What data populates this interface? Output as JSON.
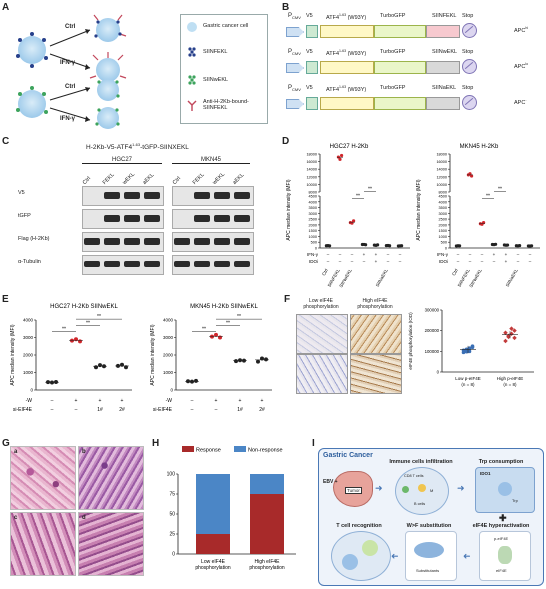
{
  "panels": {
    "A": {
      "label": "A",
      "arrow_top": "Ctrl",
      "arrow_ifn": "IFN-γ",
      "arrow_top2": "Ctrl",
      "arrow_ifn2": "IFN-γ",
      "legend": [
        "Gastric cancer cell",
        "SIINFEKL",
        "SIINwEKL",
        "Anti-H-2Kb-bound-SIINFEKL"
      ]
    },
    "B": {
      "label": "B",
      "constructs": [
        {
          "promoter": "P",
          "sub": "CMV",
          "v5": "V5",
          "atf": "ATF4",
          "atf_sup": "1-63",
          "atf_mut": "(W93Y)",
          "gfp": "TurboGFP",
          "pep": "SIINFEKL",
          "stop": "Stop",
          "apc": "APC",
          "apc_sup": "hi"
        },
        {
          "promoter": "P",
          "sub": "CMV",
          "v5": "V5",
          "atf": "ATF4",
          "atf_sup": "1-63",
          "atf_mut": "(W93Y)",
          "gfp": "TurboGFP",
          "pep": "SIINwEKL",
          "stop": "Stop",
          "apc": "APC",
          "apc_sup": "lo"
        },
        {
          "promoter": "P",
          "sub": "CMV",
          "v5": "V5",
          "atf": "ATF4",
          "atf_sup": "1-63",
          "atf_mut": "(W93Y)",
          "gfp": "TurboGFP",
          "pep": "SIINaEKL",
          "stop": "Stop",
          "apc": "APC",
          "apc_sup": "-"
        }
      ]
    },
    "C": {
      "label": "C",
      "title": "H-2Kb-V5-ATF4",
      "title_sup": "1-63",
      "title_rest": "-tGFP-SIINXEKL",
      "groups": [
        "HGC27",
        "MKN45"
      ],
      "lanes": [
        "Ctrl",
        "FEKL",
        "wEKL",
        "aEKL"
      ],
      "rows": [
        "V5",
        "tGFP",
        "Flag (H-2Kb)",
        "α-Tubulin"
      ]
    },
    "D": {
      "label": "D"
    },
    "E": {
      "label": "E"
    },
    "F": {
      "label": "F",
      "col_low": "Low eIF4E phosphorylation",
      "col_high": "High eIF4E phosphorylation"
    },
    "G": {
      "label": "G",
      "tiles": [
        "a",
        "b",
        "c",
        "d"
      ]
    },
    "H": {
      "label": "H"
    },
    "I": {
      "label": "I",
      "title": "Gastric Cancer",
      "ebv": "EBV +",
      "tumor": "Tumor",
      "box1": "Immune cells infiltration",
      "box2": "Trp consumption",
      "box2_tag": "IDO1",
      "box3": "eIF4E hyperactivation",
      "box4": "W>F substitution",
      "box5": "T cell recognition",
      "cd8": "CD8 T cells",
      "m": "M",
      "b": "B cells",
      "trp": "Trp",
      "sub": "Substitutants",
      "peif4e": "p-eIF4E",
      "eif4e": "eIF4E"
    }
  },
  "chart_data": [
    {
      "id": "D1",
      "type": "scatter",
      "title": "HGC27 H-2Kb",
      "ylabel": "APC median intensity (MFI)",
      "yticks": [
        "0",
        "500",
        "1000",
        "1500",
        "2000",
        "2500",
        "3000",
        "3500",
        "4000",
        "4500",
        "8000",
        "10000",
        "12000",
        "14000",
        "16000",
        "18000"
      ],
      "row_labels": [
        "IFN-γ",
        "IDOi"
      ],
      "row_signs": [
        [
          "–",
          "–",
          "–",
          "+",
          "+",
          "–",
          "–"
        ],
        [
          "–",
          "–",
          "–",
          "–",
          "+",
          "–",
          "–"
        ]
      ],
      "categories": [
        "Ctrl",
        "SIINFEKL",
        "SIINwEKL",
        "",
        "",
        "SIINaEKL",
        ""
      ],
      "groups": [
        {
          "values": [
            200,
            210,
            190
          ]
        },
        {
          "values": [
            17200,
            16600,
            17600
          ]
        },
        {
          "values": [
            2200,
            2150,
            2350
          ]
        },
        {
          "values": [
            300,
            310,
            280
          ]
        },
        {
          "values": [
            250,
            230,
            270
          ]
        },
        {
          "values": [
            210,
            220,
            200
          ]
        },
        {
          "values": [
            180,
            190,
            200
          ]
        }
      ],
      "sig": [
        "**",
        "**"
      ]
    },
    {
      "id": "D2",
      "type": "scatter",
      "title": "MKN45 H-2Kb",
      "ylabel": "APC median intensity (MFI)",
      "yticks": [
        "0",
        "500",
        "1000",
        "1500",
        "2000",
        "2500",
        "3000",
        "3500",
        "4000",
        "4500",
        "8000",
        "10000",
        "12000",
        "14000",
        "16000",
        "18000"
      ],
      "row_labels": [
        "IFN-γ",
        "IDOi"
      ],
      "row_signs": [
        [
          "–",
          "–",
          "–",
          "+",
          "+",
          "–",
          "–"
        ],
        [
          "–",
          "–",
          "–",
          "–",
          "+",
          "–",
          "–"
        ]
      ],
      "categories": [
        "Ctrl",
        "SIINFEKL",
        "SIINwEKL",
        "",
        "",
        "SIINaEKL",
        ""
      ],
      "groups": [
        {
          "values": [
            180,
            200,
            190
          ]
        },
        {
          "values": [
            12500,
            12800,
            12200
          ]
        },
        {
          "values": [
            2100,
            2050,
            2200
          ]
        },
        {
          "values": [
            300,
            290,
            320
          ]
        },
        {
          "values": [
            260,
            240,
            250
          ]
        },
        {
          "values": [
            200,
            190,
            210
          ]
        },
        {
          "values": [
            180,
            170,
            190
          ]
        }
      ],
      "sig": [
        "**",
        "**"
      ]
    },
    {
      "id": "E1",
      "type": "scatter",
      "title": "HGC27 H-2Kb SIINwEKL",
      "ylabel": "APC median intensity (MFI)",
      "ylim": [
        0,
        4000
      ],
      "yticks": [
        "0",
        "1000",
        "2000",
        "3000",
        "4000"
      ],
      "row_labels": [
        "-W",
        "si-EIF4E"
      ],
      "row_signs": [
        [
          "–",
          "+",
          "+",
          "+"
        ],
        [
          "–",
          "–",
          "1#",
          "2#"
        ]
      ],
      "groups": [
        {
          "values": [
            450,
            430,
            460
          ]
        },
        {
          "values": [
            2820,
            2900,
            2780
          ]
        },
        {
          "values": [
            1300,
            1420,
            1360
          ]
        },
        {
          "values": [
            1380,
            1440,
            1300
          ]
        }
      ],
      "sig": [
        "**",
        "**",
        "**"
      ]
    },
    {
      "id": "E2",
      "type": "scatter",
      "title": "MKN45 H-2Kb SIINwEKL",
      "ylabel": "APC median intensity (MFI)",
      "ylim": [
        0,
        4000
      ],
      "yticks": [
        "0",
        "1000",
        "2000",
        "3000",
        "4000"
      ],
      "row_labels": [
        "-W",
        "si-EIF4E"
      ],
      "row_signs": [
        [
          "–",
          "+",
          "+",
          "+"
        ],
        [
          "–",
          "–",
          "1#",
          "2#"
        ]
      ],
      "groups": [
        {
          "values": [
            500,
            480,
            520
          ]
        },
        {
          "values": [
            3050,
            3150,
            3000
          ]
        },
        {
          "values": [
            1650,
            1700,
            1680
          ]
        },
        {
          "values": [
            1620,
            1800,
            1750
          ]
        }
      ],
      "sig": [
        "**",
        "**",
        "**"
      ]
    },
    {
      "id": "F2",
      "type": "scatter",
      "ylabel": "eIF4E phosphorylation (IOD)",
      "ylim": [
        0,
        300000
      ],
      "yticks": [
        "0",
        "100000",
        "200000",
        "300000"
      ],
      "categories": [
        "Low p-eIF4E",
        "High p-eIF4E"
      ],
      "ns": [
        "(n = 8)",
        "(n = 8)"
      ],
      "groups": [
        {
          "name": "Low p-eIF4E",
          "color": "#3a6fb5",
          "values": [
            95000,
            110000,
            100000,
            120000,
            105000,
            98000,
            115000,
            125000
          ]
        },
        {
          "name": "High p-eIF4E",
          "color": "#c23b3b",
          "values": [
            150000,
            170000,
            185000,
            200000,
            190000,
            175000,
            210000,
            165000
          ]
        }
      ]
    },
    {
      "id": "H",
      "type": "bar",
      "ylim": [
        0,
        100
      ],
      "yticks": [
        "0",
        "25",
        "50",
        "75",
        "100"
      ],
      "categories": [
        "Low eIF4E phosphorylation",
        "High eIF4E phosphorylation"
      ],
      "series": [
        {
          "name": "Response",
          "color": "#a82a2a",
          "values": [
            25,
            75
          ]
        },
        {
          "name": "Non-response",
          "color": "#4b86c6",
          "values": [
            75,
            25
          ]
        }
      ]
    }
  ]
}
